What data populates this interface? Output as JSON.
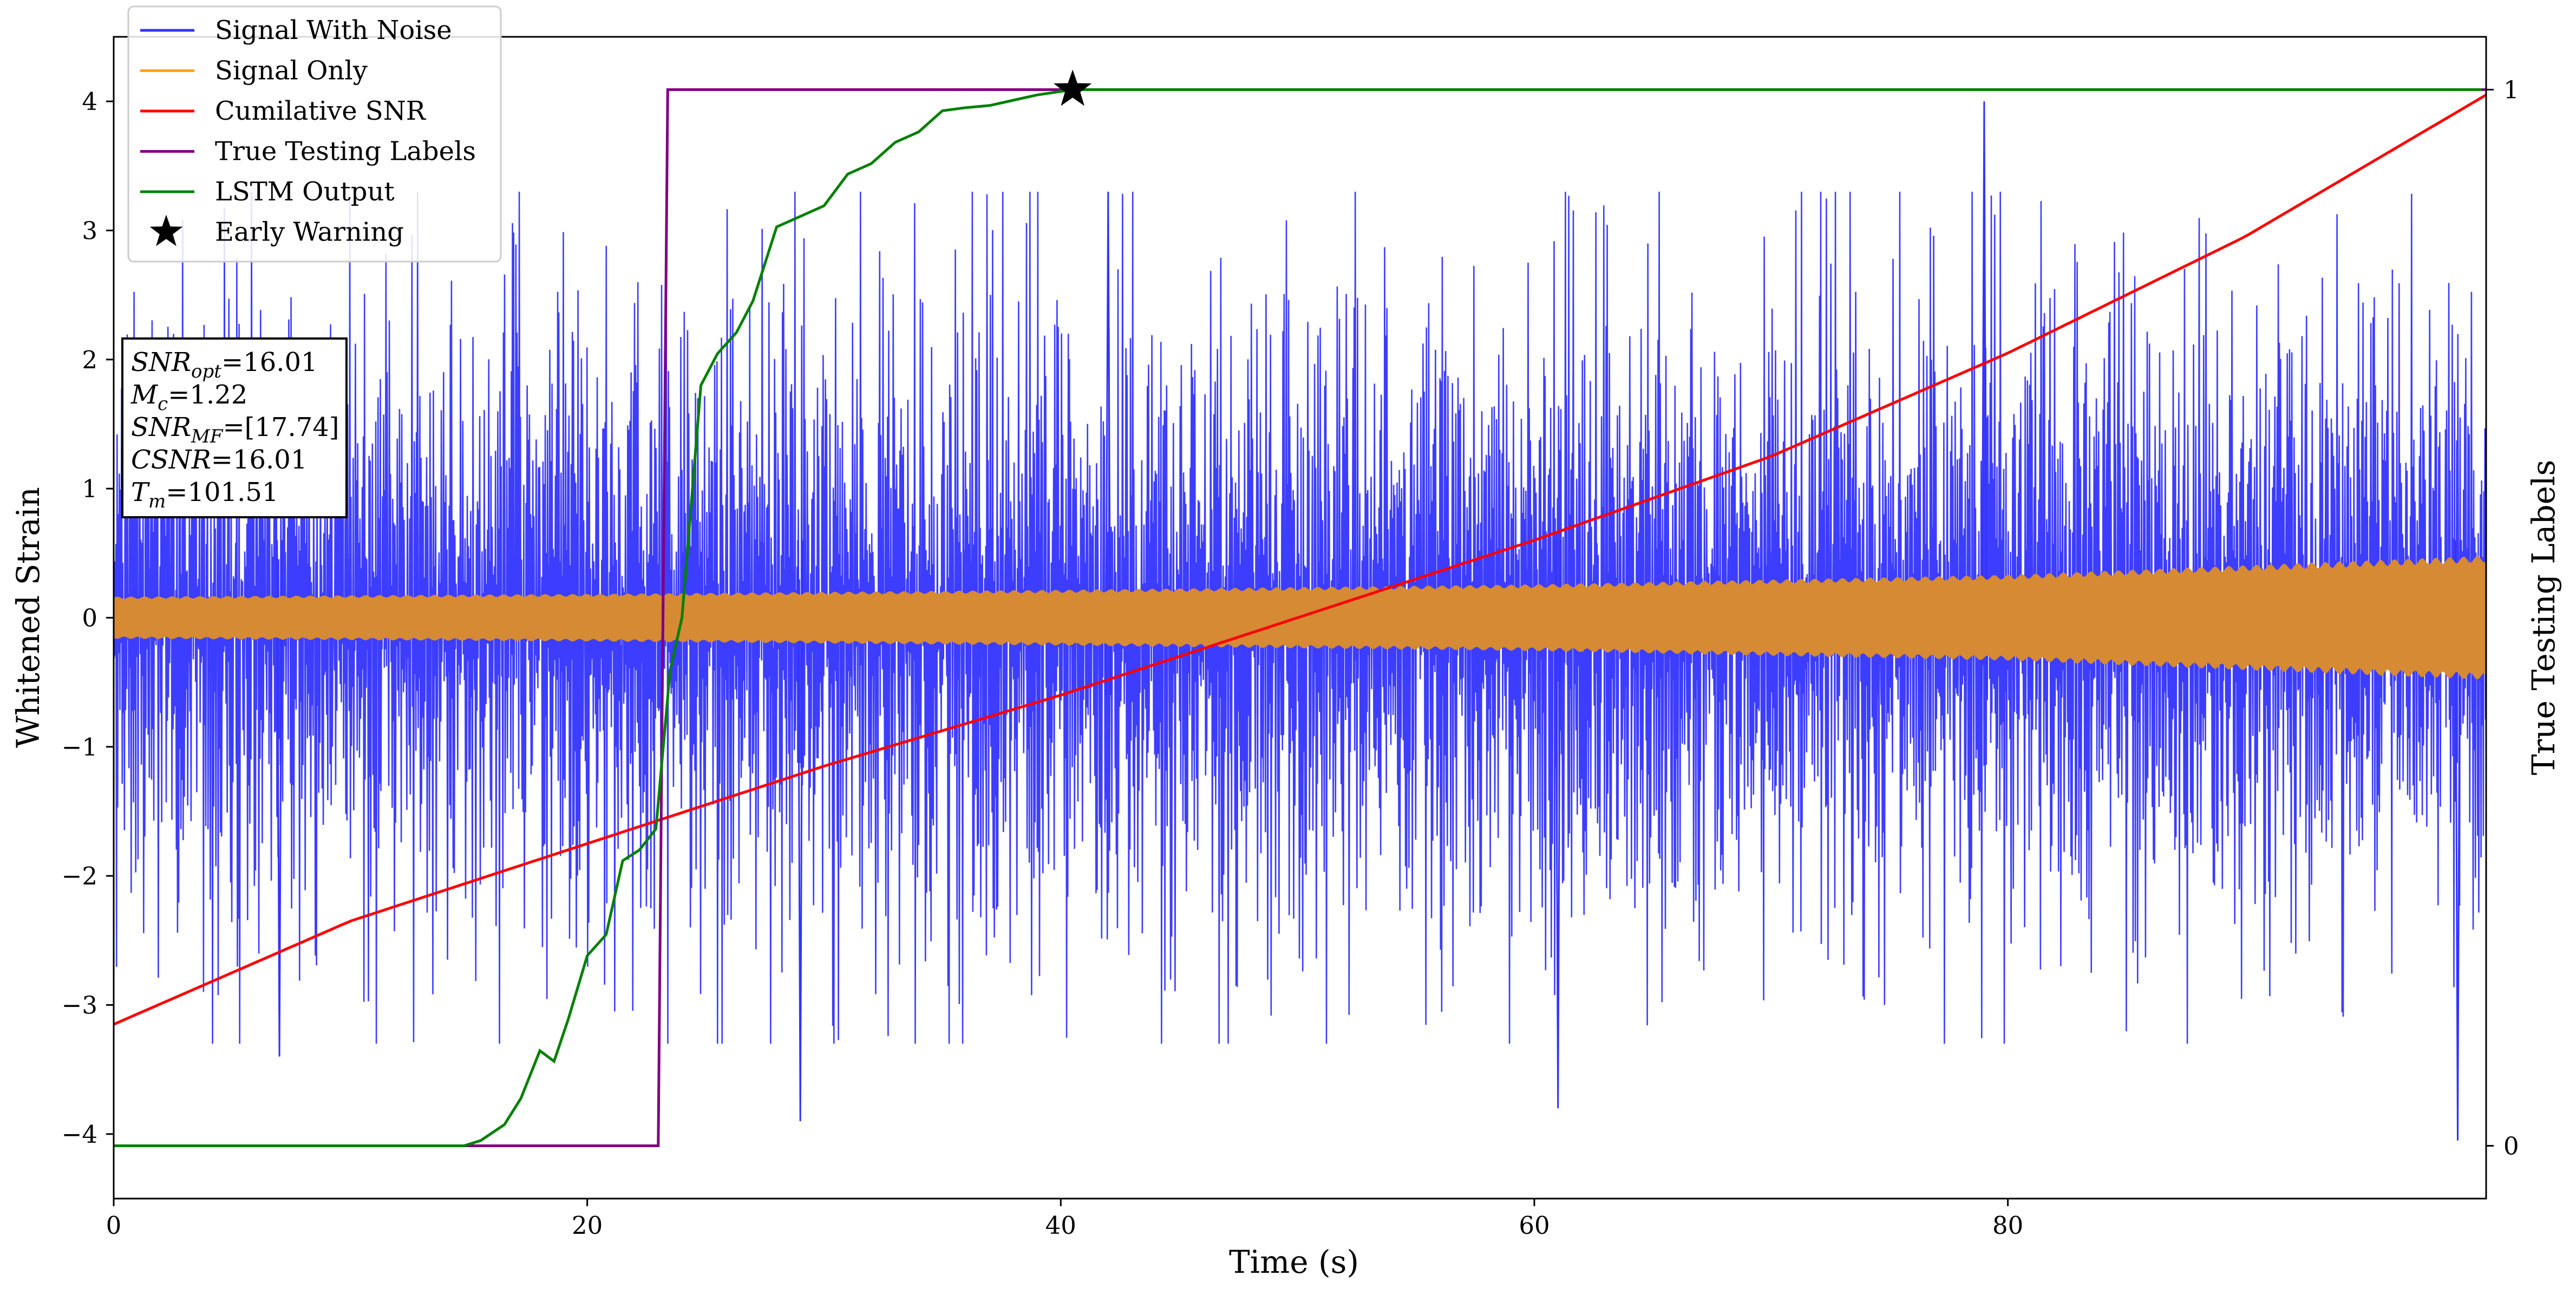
{
  "chart_data": {
    "type": "line",
    "xlabel": "Time (s)",
    "ylabel": "Whitened Strain",
    "y2label": "True Testing Labels",
    "xlim": [
      0,
      100.2
    ],
    "ylim": [
      -4.5,
      4.5
    ],
    "y2lim": [
      -0.05,
      1.05
    ],
    "x_ticks": [
      0,
      20,
      40,
      60,
      80
    ],
    "x_tick_labels": [
      "0",
      "20",
      "40",
      "60",
      "80"
    ],
    "y_ticks": [
      4,
      3,
      2,
      1,
      0,
      -1,
      -2,
      -3,
      -4
    ],
    "y_tick_labels": [
      "4",
      "3",
      "2",
      "1",
      "0",
      "−1",
      "−2",
      "−3",
      "−4"
    ],
    "y2_ticks": [
      1,
      0
    ],
    "y2_tick_labels": [
      "1",
      "0"
    ],
    "grid": false,
    "legend_position": "top-left",
    "legend": [
      {
        "label": "Signal With Noise",
        "color": "#3333ff",
        "marker": "line"
      },
      {
        "label": "Signal Only",
        "color": "#ffa500",
        "marker": "line"
      },
      {
        "label": "Cumilative SNR",
        "color": "#ff0000",
        "marker": "line"
      },
      {
        "label": "True Testing Labels",
        "color": "#800080",
        "marker": "line"
      },
      {
        "label": "LSTM Output",
        "color": "#008000",
        "marker": "line"
      },
      {
        "label": "Early Warning",
        "color": "#000000",
        "marker": "star"
      }
    ],
    "series": [
      {
        "name": "Signal With Noise",
        "color": "#3333ff",
        "style": "dense noisy oscillation",
        "x_range": [
          0,
          100.2
        ],
        "typical_amplitude": 1.5,
        "extremes": [
          {
            "x": 7.0,
            "y": -3.4
          },
          {
            "x": 29.0,
            "y": -3.9
          },
          {
            "x": 42.0,
            "y": 3.3
          },
          {
            "x": 61.0,
            "y": -3.8
          },
          {
            "x": 79.0,
            "y": 4.0
          },
          {
            "x": 99.0,
            "y": -4.05
          }
        ]
      },
      {
        "name": "Signal Only",
        "color": "#ffa500",
        "style": "dense oscillation, growing envelope",
        "envelope_x": [
          0,
          20,
          40,
          60,
          80,
          100.2
        ],
        "envelope_y": [
          0.15,
          0.17,
          0.2,
          0.24,
          0.31,
          0.45
        ]
      },
      {
        "name": "Cumilative SNR",
        "color": "#ff0000",
        "axis": "left",
        "x": [
          0,
          10,
          20,
          30,
          40,
          50,
          60,
          70,
          80,
          90,
          100.2
        ],
        "y": [
          -3.15,
          -2.35,
          -1.75,
          -1.15,
          -0.6,
          0.0,
          0.6,
          1.25,
          2.05,
          2.95,
          4.05
        ]
      },
      {
        "name": "True Testing Labels",
        "color": "#800080",
        "axis": "right",
        "x": [
          0,
          23.0,
          23.4,
          100.2
        ],
        "y": [
          0,
          0,
          1,
          1
        ]
      },
      {
        "name": "LSTM Output",
        "color": "#008000",
        "axis": "right",
        "x": [
          0,
          14.8,
          15.5,
          16.5,
          17.2,
          18.0,
          18.6,
          19.2,
          20.0,
          20.8,
          21.5,
          22.2,
          22.9,
          23.5,
          24.0,
          24.8,
          25.5,
          26.3,
          27.0,
          28.0,
          29.0,
          30.0,
          31.0,
          32.0,
          33.0,
          34.0,
          35.0,
          36.0,
          37.0,
          38.0,
          39.0,
          40.5,
          42.0,
          45.0,
          50.0,
          60.0,
          80.0,
          100.0
        ],
        "y": [
          0,
          0,
          0.005,
          0.02,
          0.045,
          0.09,
          0.08,
          0.12,
          0.18,
          0.2,
          0.27,
          0.28,
          0.3,
          0.45,
          0.5,
          0.72,
          0.75,
          0.77,
          0.8,
          0.87,
          0.88,
          0.89,
          0.92,
          0.93,
          0.95,
          0.96,
          0.98,
          0.983,
          0.985,
          0.99,
          0.995,
          1.0,
          1.0,
          1.0,
          1.0,
          1.0,
          1.0,
          1.0
        ]
      },
      {
        "name": "Early Warning",
        "color": "#000000",
        "marker": "star",
        "axis": "right",
        "x": [
          40.5
        ],
        "y": [
          1.0
        ]
      }
    ],
    "textbox": [
      {
        "base": "SNR",
        "sub": "opt",
        "value": "=16.01"
      },
      {
        "base": "M",
        "sub": "c",
        "value": "=1.22"
      },
      {
        "base": "SNR",
        "sub": "MF",
        "value": "=[17.74]"
      },
      {
        "base": "CSNR",
        "sub": "",
        "value": "=16.01"
      },
      {
        "base": "T",
        "sub": "m",
        "value": "=101.51"
      }
    ]
  }
}
